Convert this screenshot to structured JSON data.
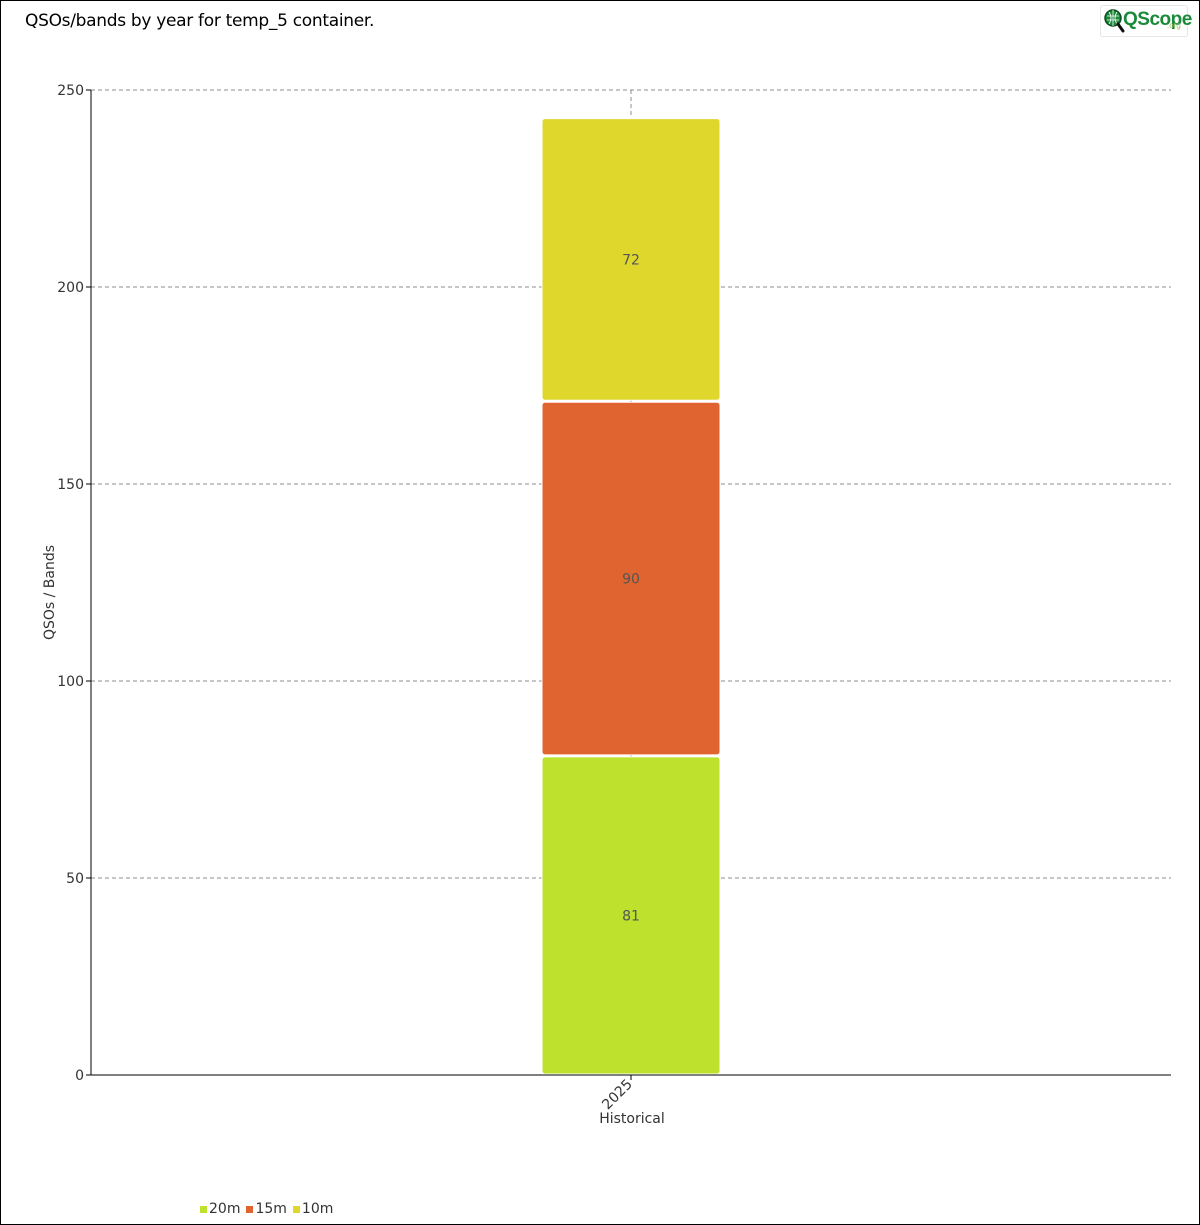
{
  "header": {
    "title": "QSOs/bands by year for temp_5 container.",
    "logo_text": "QScope",
    "logo_sub": ".org"
  },
  "chart_data": {
    "type": "bar",
    "stacked": true,
    "categories": [
      "2025"
    ],
    "xlabel": "Historical",
    "ylabel": "QSOs / Bands",
    "ylim": [
      0,
      250
    ],
    "yticks": [
      0,
      50,
      100,
      150,
      200,
      250
    ],
    "grid": true,
    "legend_position": "bottom-left",
    "series": [
      {
        "name": "20m",
        "values": [
          81
        ],
        "color": "#bde12d"
      },
      {
        "name": "15m",
        "values": [
          90
        ],
        "color": "#e0642f"
      },
      {
        "name": "10m",
        "values": [
          72
        ],
        "color": "#e0d72d"
      }
    ]
  }
}
